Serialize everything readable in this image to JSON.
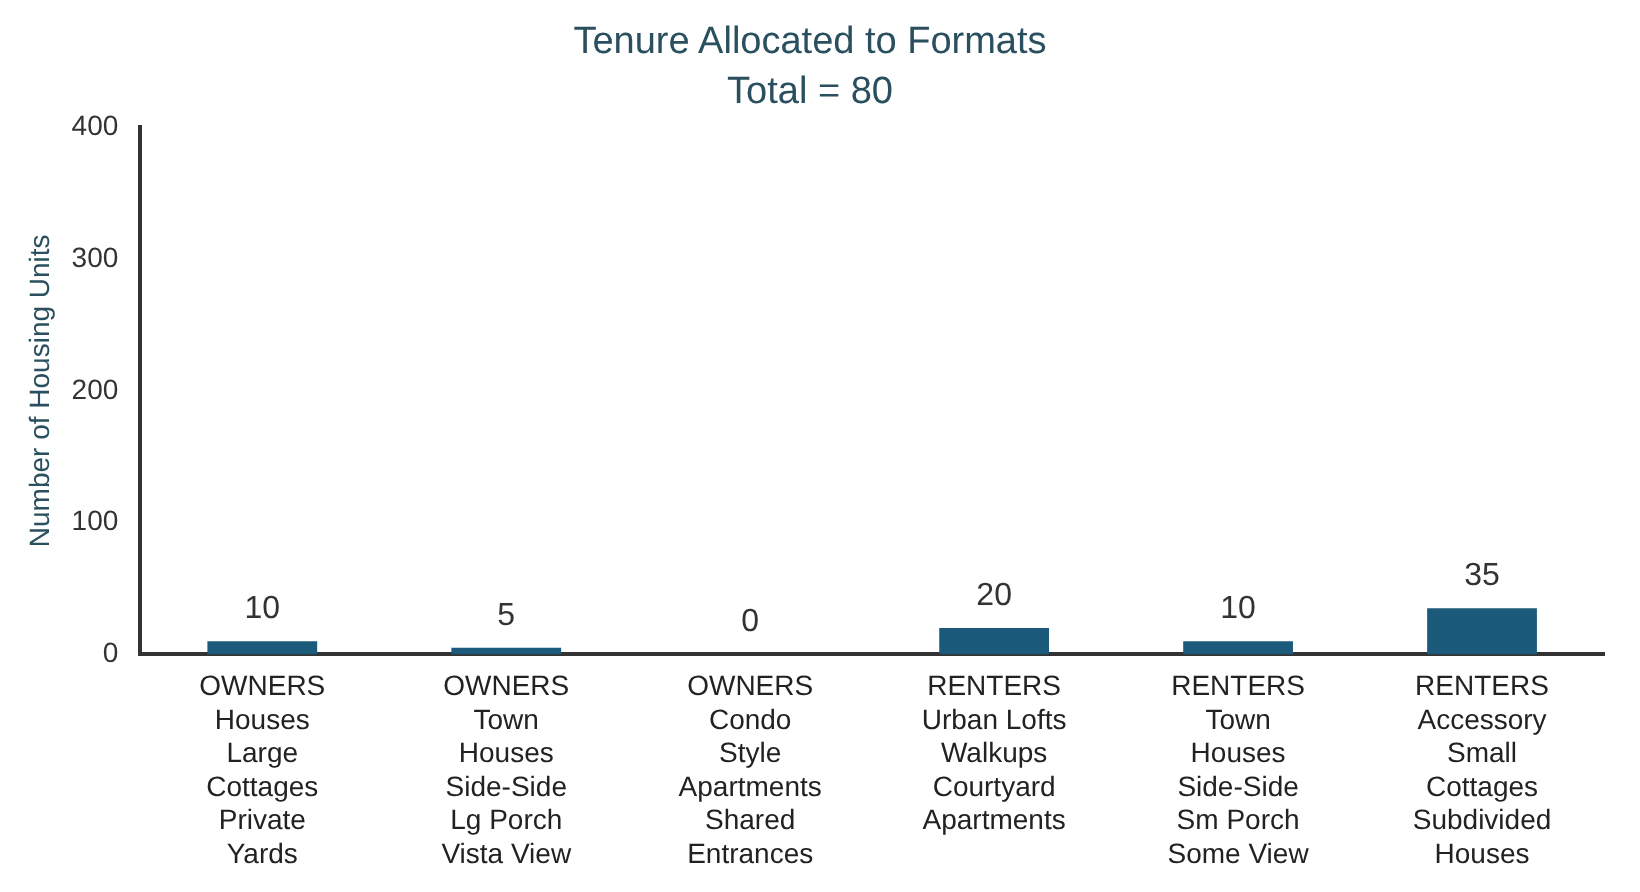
{
  "chart_data": {
    "type": "bar",
    "title": "Tenure Allocated to Formats",
    "subtitle": "Total = 80",
    "ylabel": "Number of Housing Units",
    "categories": [
      "OWNERS\nHouses\nLarge\nCottages\nPrivate\nYards",
      "OWNERS\nTown\nHouses\nSide-Side\nLg Porch\nVista View",
      "OWNERS\nCondo\nStyle\nApartments\nShared\nEntrances",
      "RENTERS\nUrban Lofts\nWalkups\nCourtyard\nApartments",
      "RENTERS\nTown\nHouses\nSide-Side\nSm Porch\nSome View",
      "RENTERS\nAccessory\nSmall\nCottages\nSubdivided\nHouses"
    ],
    "values": [
      10,
      5,
      0,
      20,
      10,
      35
    ],
    "color": "#1b5a7a",
    "ylim": [
      0,
      400
    ],
    "yticks": [
      0,
      100,
      200,
      300,
      400
    ],
    "grid": false,
    "legend": false,
    "data_labels": true
  }
}
